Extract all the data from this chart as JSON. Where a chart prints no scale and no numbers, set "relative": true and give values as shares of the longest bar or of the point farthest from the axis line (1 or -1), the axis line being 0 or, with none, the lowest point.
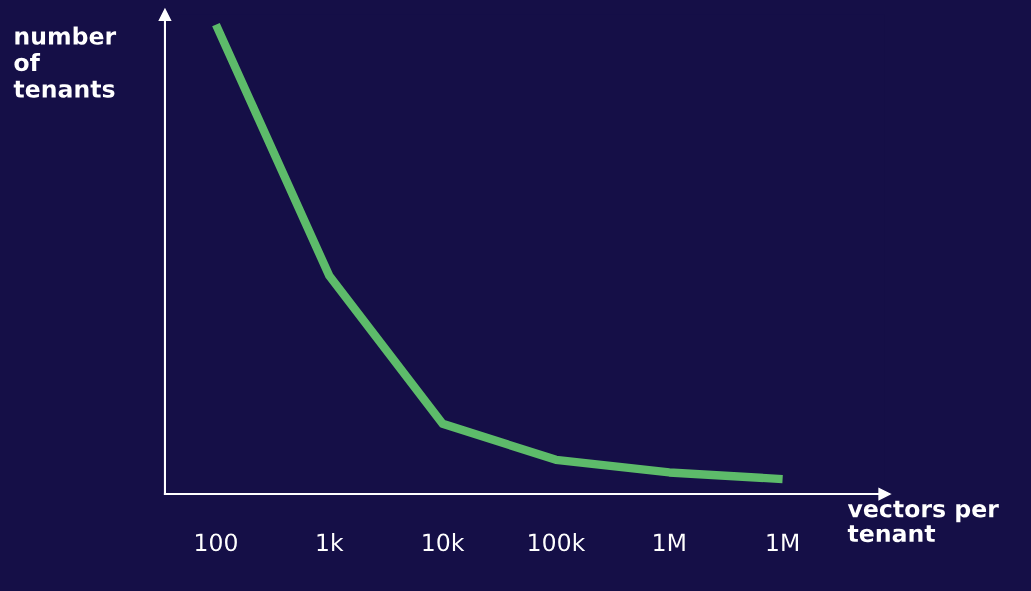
{
  "chart_data": {
    "type": "line",
    "relative": true,
    "xlabel": "vectors per\ntenant",
    "ylabel": "number\nof\ntenants",
    "categories": [
      "100",
      "1k",
      "10k",
      "100k",
      "1M",
      "1M"
    ],
    "series": [
      {
        "color": "#5dbb6a",
        "values": [
          1.0,
          0.465,
          0.15,
          0.073,
          0.046,
          0.032
        ]
      }
    ],
    "grid": false,
    "legend": false,
    "marker": "none",
    "line_style": "solid"
  }
}
